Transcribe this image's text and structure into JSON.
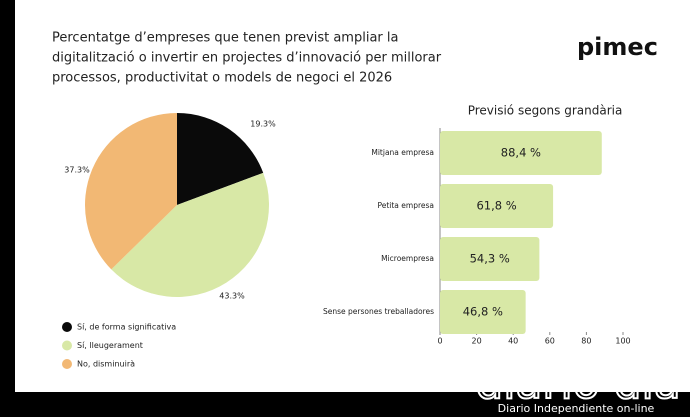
{
  "header": {
    "title_lines": [
      "Percentatge d’empreses que tenen previst ampliar la",
      "digitalització o invertir en projectes d’innovació per millorar",
      "processos, productivitat o models de negoci el 2026"
    ],
    "logo": "pimec"
  },
  "watermark": {
    "brand": "diario dia",
    "tagline": "Diario Independiente on-line"
  },
  "chart_data": [
    {
      "type": "pie",
      "series": [
        {
          "name": "Sí, de forma significativa",
          "color": "#0a0a0a",
          "values": [
            19.3
          ],
          "value_labels": [
            "19.3%"
          ]
        },
        {
          "name": "Sí, lleugerament",
          "color": "#d8e8a6",
          "values": [
            43.3
          ],
          "value_labels": [
            "43.3%"
          ]
        },
        {
          "name": "No, disminuirà",
          "color": "#f2b874",
          "values": [
            37.3
          ],
          "value_labels": [
            "37.3%"
          ]
        }
      ]
    },
    {
      "type": "hbar",
      "title": "Previsió segons grandària",
      "categories": [
        "Mitjana empresa",
        "Petita empresa",
        "Microempresa",
        "Sense persones treballadores"
      ],
      "values": [
        88.4,
        61.8,
        54.3,
        46.8
      ],
      "value_labels": [
        "88,4 %",
        "61,8 %",
        "54,3 %",
        "46,8 %"
      ],
      "color": "#d8e8a6",
      "xlim": [
        0,
        100
      ],
      "xticks": [
        0,
        20,
        40,
        60,
        80,
        100
      ]
    }
  ]
}
